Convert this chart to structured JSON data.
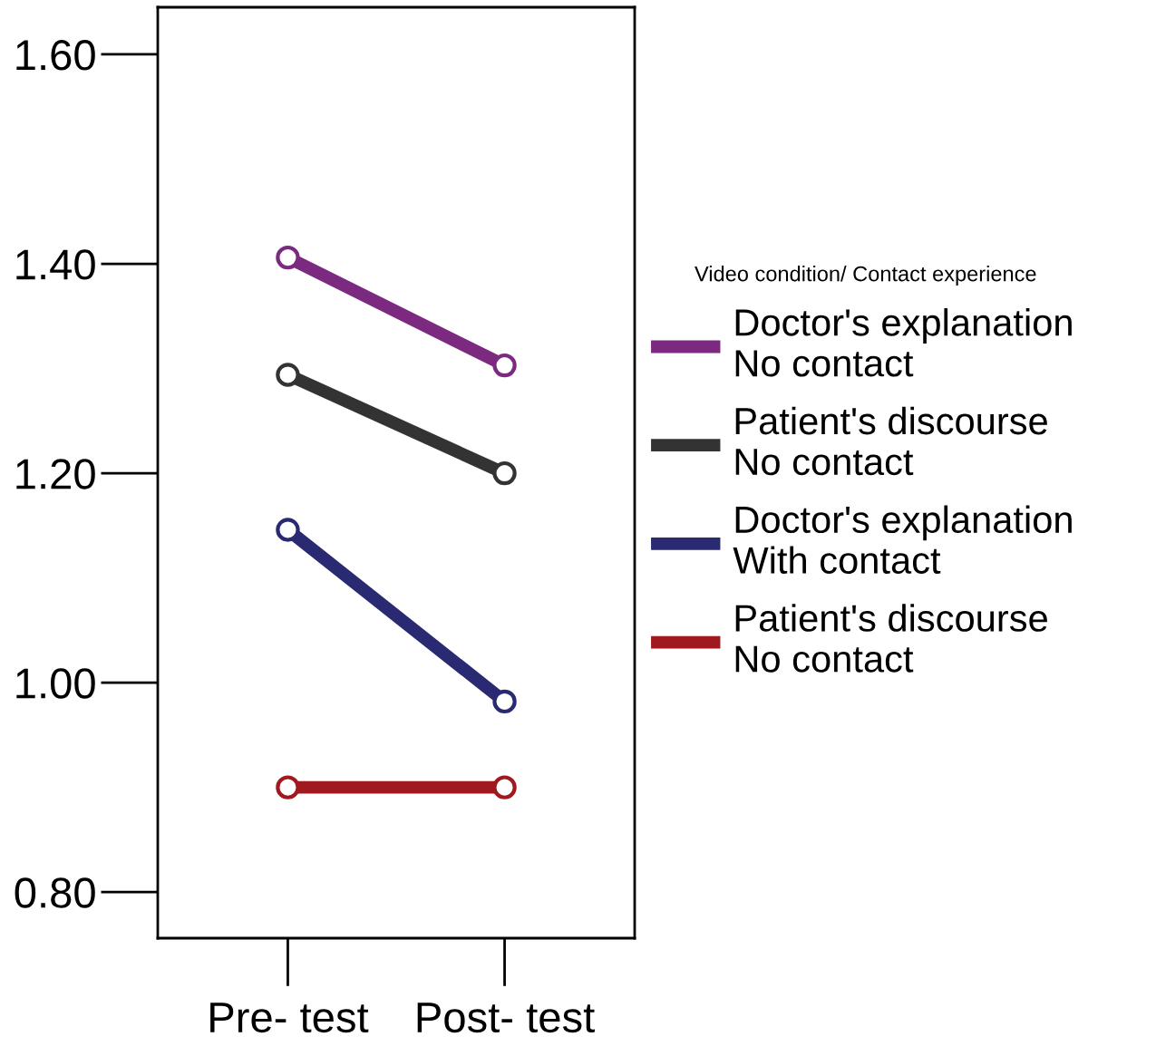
{
  "chart_data": {
    "type": "line",
    "categories": [
      "Pre- test",
      "Post- test"
    ],
    "legend_title": "Video condition/ Contact experience",
    "series": [
      {
        "name": "Doctor's explanation\nNo contact",
        "color": "#7b2a7f",
        "values": [
          1.406,
          1.303
        ]
      },
      {
        "name": "Patient's discourse\nNo contact",
        "color": "#333333",
        "values": [
          1.294,
          1.2
        ]
      },
      {
        "name": "Doctor's explanation\nWith contact",
        "color": "#2a2a72",
        "values": [
          1.146,
          0.982
        ]
      },
      {
        "name": "Patient's discourse\nNo contact",
        "color": "#a0191f",
        "values": [
          0.9,
          0.9
        ]
      }
    ],
    "ylim": [
      0.756,
      1.645
    ],
    "yticks": [
      {
        "value": 0.8,
        "label": "0.80"
      },
      {
        "value": 1.0,
        "label": "1.00"
      },
      {
        "value": 1.2,
        "label": "1.20"
      },
      {
        "value": 1.4,
        "label": "1.40"
      },
      {
        "value": 1.6,
        "label": "1.60"
      }
    ],
    "marker": "circle",
    "line_style": "solid",
    "legend": "right",
    "grid": false
  }
}
